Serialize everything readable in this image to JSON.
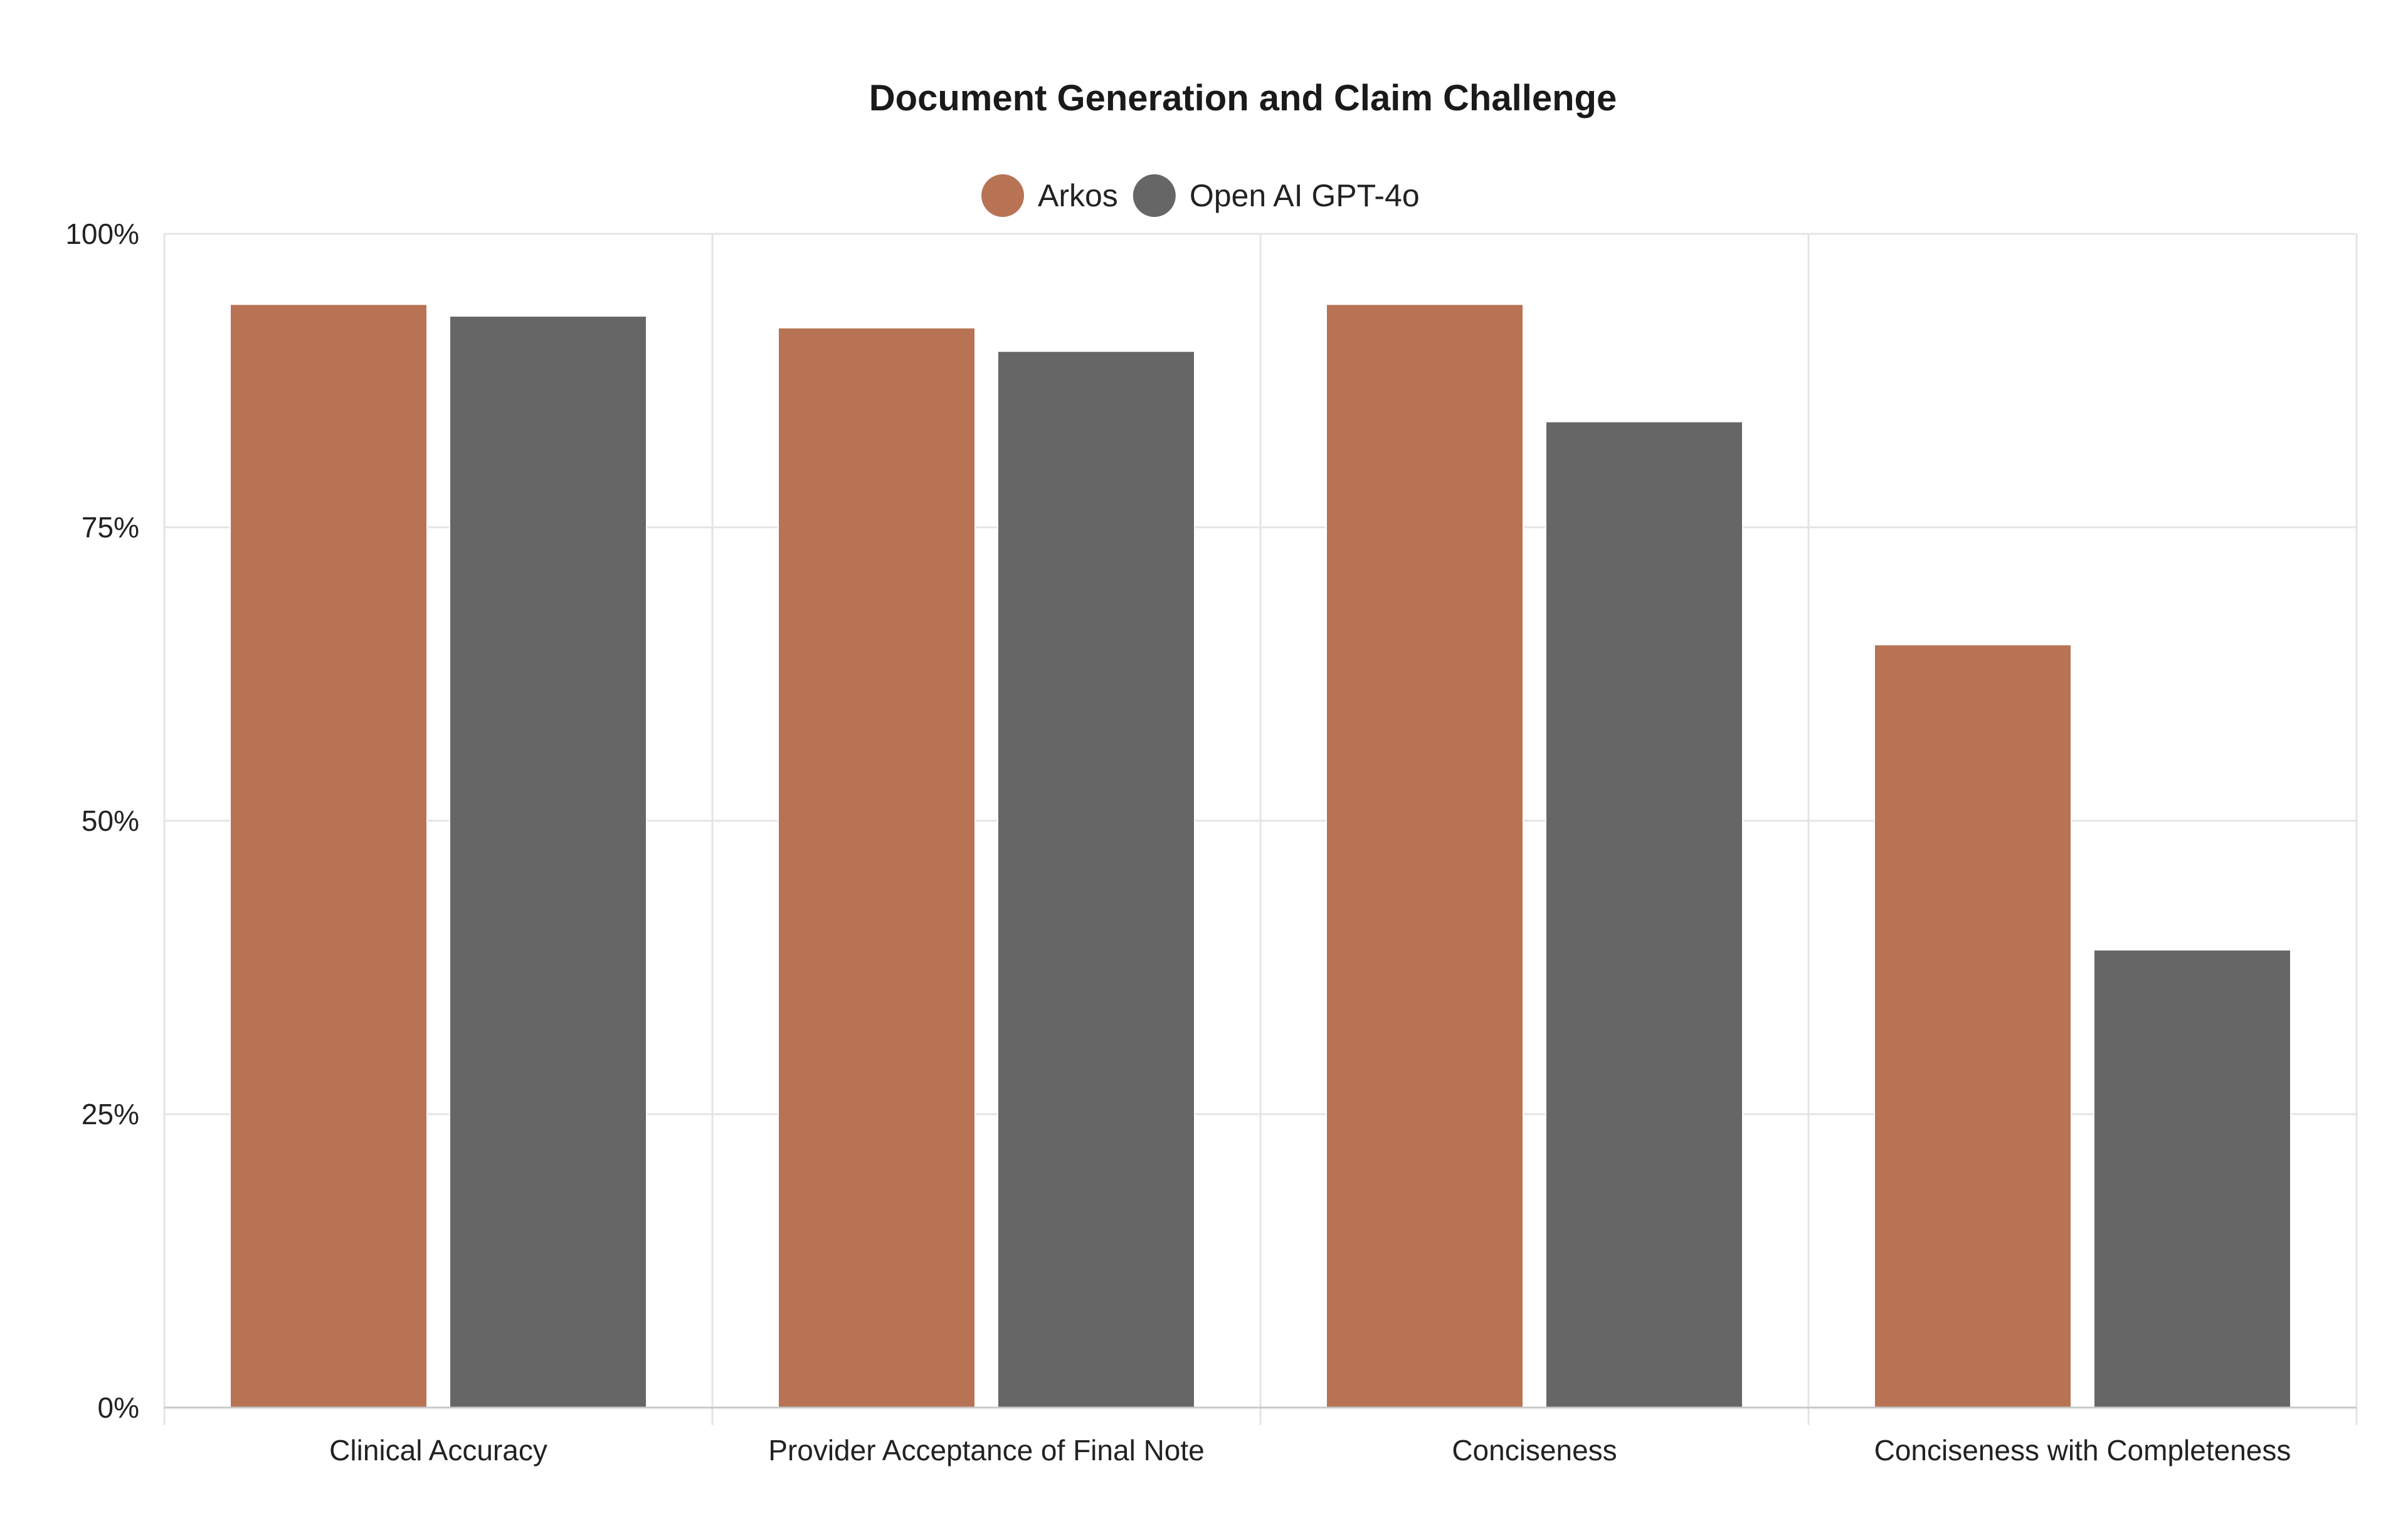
{
  "chart_data": {
    "type": "bar",
    "title": "Document Generation and Claim Challenge",
    "categories": [
      "Clinical Accuracy",
      "Provider Acceptance of Final Note",
      "Conciseness",
      "Conciseness with Completeness"
    ],
    "series": [
      {
        "name": "Arkos",
        "color": "#b87355",
        "values": [
          94,
          92,
          94,
          65
        ]
      },
      {
        "name": "Open AI GPT-4o",
        "color": "#666666",
        "values": [
          93,
          90,
          84,
          39
        ]
      }
    ],
    "y_ticks": [
      "0%",
      "25%",
      "50%",
      "75%",
      "100%"
    ],
    "ylim": [
      0,
      100
    ],
    "grid": true,
    "legend_position": "top-center"
  }
}
